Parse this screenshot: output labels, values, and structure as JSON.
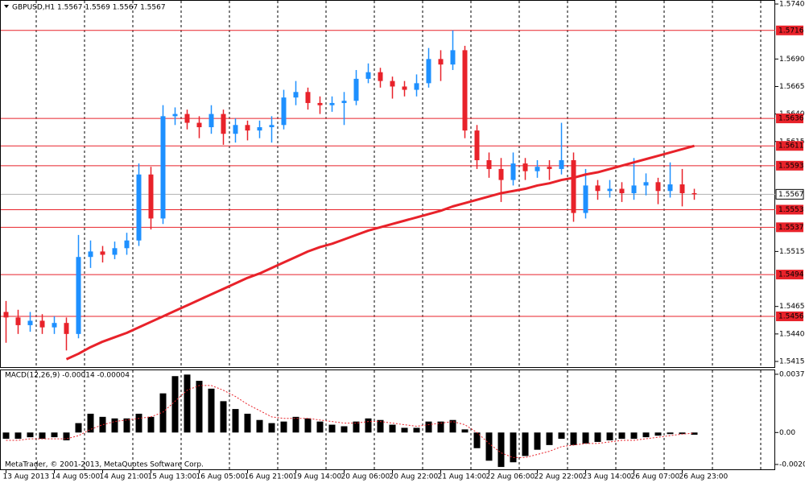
{
  "chart_data": [
    {
      "type": "candlestick",
      "title": "GBPUSD,H1  1.5567 1.5569 1.5567 1.5567",
      "categories": [
        "13 Aug 2013",
        null,
        null,
        null,
        "14 Aug 05:00",
        null,
        null,
        null,
        "14 Aug 21:00",
        null,
        null,
        null,
        "15 Aug 13:00",
        null,
        null,
        null,
        "16 Aug 05:00",
        null,
        null,
        null,
        "16 Aug 21:00",
        null,
        null,
        null,
        "19 Aug 14:00",
        null,
        null,
        null,
        "20 Aug 06:00",
        null,
        null,
        null,
        "20 Aug 22:00",
        null,
        null,
        null,
        "21 Aug 14:00",
        null,
        null,
        null,
        "22 Aug 06:00",
        null,
        null,
        null,
        "22 Aug 22:00",
        null,
        null,
        null,
        "23 Aug 14:00",
        null,
        null,
        null,
        "26 Aug 07:00",
        null,
        null,
        null,
        "26 Aug 23:00",
        null
      ],
      "open": [
        1.546,
        1.5455,
        1.5448,
        1.5452,
        1.5446,
        1.545,
        1.544,
        1.551,
        1.5515,
        1.5512,
        1.5518,
        1.5525,
        1.5585,
        1.5545,
        1.5638,
        1.564,
        1.5632,
        1.5628,
        1.564,
        1.5622,
        1.563,
        1.5625,
        1.5628,
        1.563,
        1.5655,
        1.566,
        1.565,
        1.5648,
        1.565,
        1.5652,
        1.5672,
        1.5678,
        1.567,
        1.5665,
        1.5662,
        1.5668,
        1.569,
        1.5685,
        1.5698,
        1.5625,
        1.5598,
        1.559,
        1.558,
        1.5595,
        1.5588,
        1.5592,
        1.559,
        1.5598,
        1.555,
        1.5575,
        1.557,
        1.5572,
        1.5568,
        1.5575,
        1.5578,
        1.557,
        1.5576,
        1.5568
      ],
      "high": [
        1.547,
        1.5462,
        1.546,
        1.5458,
        1.5456,
        1.5455,
        1.553,
        1.5525,
        1.552,
        1.5524,
        1.5532,
        1.5595,
        1.5592,
        1.5648,
        1.5646,
        1.5644,
        1.5638,
        1.5648,
        1.5644,
        1.5636,
        1.5634,
        1.5634,
        1.5638,
        1.5662,
        1.567,
        1.5664,
        1.5656,
        1.5656,
        1.566,
        1.568,
        1.5686,
        1.5682,
        1.5674,
        1.567,
        1.5676,
        1.57,
        1.5698,
        1.5716,
        1.5702,
        1.563,
        1.5605,
        1.56,
        1.5605,
        1.56,
        1.5598,
        1.5598,
        1.5632,
        1.5605,
        1.559,
        1.558,
        1.558,
        1.5578,
        1.56,
        1.5586,
        1.5582,
        1.5596,
        1.559,
        1.5572
      ],
      "low": [
        1.5432,
        1.544,
        1.5442,
        1.544,
        1.544,
        1.5425,
        1.5436,
        1.55,
        1.5505,
        1.5508,
        1.5512,
        1.552,
        1.5535,
        1.554,
        1.563,
        1.5626,
        1.5618,
        1.5622,
        1.5612,
        1.5614,
        1.5616,
        1.5618,
        1.5614,
        1.5626,
        1.5648,
        1.5644,
        1.564,
        1.5642,
        1.563,
        1.5648,
        1.5668,
        1.5664,
        1.5654,
        1.5656,
        1.5656,
        1.5664,
        1.567,
        1.568,
        1.5618,
        1.559,
        1.5582,
        1.556,
        1.5575,
        1.558,
        1.5582,
        1.558,
        1.5585,
        1.5542,
        1.5545,
        1.5562,
        1.5564,
        1.556,
        1.5562,
        1.5566,
        1.5558,
        1.5564,
        1.5556,
        1.5562
      ],
      "close": [
        1.5455,
        1.5448,
        1.5452,
        1.5446,
        1.545,
        1.544,
        1.551,
        1.5515,
        1.5512,
        1.5518,
        1.5525,
        1.5585,
        1.5545,
        1.5638,
        1.564,
        1.5632,
        1.5628,
        1.564,
        1.5622,
        1.563,
        1.5625,
        1.5628,
        1.563,
        1.5655,
        1.566,
        1.565,
        1.5648,
        1.565,
        1.5652,
        1.5672,
        1.5678,
        1.567,
        1.5665,
        1.5662,
        1.5668,
        1.569,
        1.5685,
        1.5698,
        1.5625,
        1.5598,
        1.559,
        1.558,
        1.5595,
        1.5588,
        1.5592,
        1.559,
        1.5598,
        1.555,
        1.5575,
        1.557,
        1.5572,
        1.5568,
        1.5575,
        1.5578,
        1.557,
        1.5576,
        1.5568,
        1.5567
      ],
      "up_color": "#1e90ff",
      "down_color": "#e8222a",
      "ma": {
        "color": "#e8222a",
        "values": [
          null,
          null,
          null,
          null,
          null,
          1.5417,
          1.5422,
          1.5428,
          1.5433,
          1.5437,
          1.5441,
          1.5446,
          1.5451,
          1.5456,
          1.5461,
          1.5466,
          1.5471,
          1.5476,
          1.5481,
          1.5486,
          1.5491,
          1.5495,
          1.55,
          1.5505,
          1.551,
          1.5515,
          1.5519,
          1.5522,
          1.5526,
          1.553,
          1.5534,
          1.5537,
          1.554,
          1.5543,
          1.5546,
          1.5549,
          1.5552,
          1.5556,
          1.5559,
          1.5562,
          1.5565,
          1.5568,
          1.557,
          1.5572,
          1.5575,
          1.5577,
          1.558,
          1.5582,
          1.5585,
          1.5587,
          1.559,
          1.5593,
          1.5596,
          1.5599,
          1.5602,
          1.5605,
          1.5608,
          1.5611
        ]
      },
      "ylim": [
        1.5415,
        1.574
      ],
      "yticks": [
        {
          "value": 1.574,
          "label": "1.5740"
        },
        {
          "value": 1.569,
          "label": "1.5690"
        },
        1.5665,
        {
          "value": 1.564,
          "label": "1.5640"
        },
        1.5615,
        1.5515,
        1.5465,
        {
          "value": 1.544,
          "label": "1.5440"
        },
        1.5415
      ],
      "levels": [
        1.5716,
        1.5636,
        1.5611,
        1.5593,
        1.5553,
        1.5537,
        1.5494,
        1.5456
      ],
      "level_color": "#e8222a",
      "current_price": 1.5567
    },
    {
      "type": "macd",
      "title": "MACD(12,26,9) -0.00014 -0.00004",
      "annotation": "MetaTrader, © 2001-2013, MetaQuotes Software Corp.",
      "values": [
        -0.0004,
        -0.0004,
        -0.0003,
        -0.0004,
        -0.0003,
        -0.0005,
        0.0006,
        0.0012,
        0.001,
        0.0009,
        0.0009,
        0.0012,
        0.001,
        0.0025,
        0.0036,
        0.0037,
        0.0033,
        0.0028,
        0.002,
        0.0015,
        0.0012,
        0.0008,
        0.0006,
        0.0007,
        0.001,
        0.0009,
        0.0007,
        0.0005,
        0.0004,
        0.0007,
        0.0009,
        0.0008,
        0.0005,
        0.0003,
        0.0003,
        0.0007,
        0.0007,
        0.0008,
        0.0002,
        -0.001,
        -0.0018,
        -0.0022,
        -0.0019,
        -0.0015,
        -0.0011,
        -0.0008,
        -0.0004,
        -0.0008,
        -0.0007,
        -0.0006,
        -0.0005,
        -0.0004,
        -0.0004,
        -0.0003,
        -0.0002,
        -0.0001,
        -0.0001,
        -0.00014
      ],
      "color": "#000000",
      "signal": {
        "color": "#e8222a",
        "values": [
          -0.0005,
          -0.0005,
          -0.0004,
          -0.0004,
          -0.0004,
          -0.0004,
          -0.0002,
          0.0002,
          0.0005,
          0.0007,
          0.0008,
          0.0009,
          0.001,
          0.0013,
          0.002,
          0.0027,
          0.003,
          0.003,
          0.0027,
          0.0023,
          0.0018,
          0.0014,
          0.001,
          0.0009,
          0.0009,
          0.0009,
          0.0008,
          0.0007,
          0.0006,
          0.0006,
          0.0007,
          0.0007,
          0.0006,
          0.0005,
          0.0004,
          0.0005,
          0.0006,
          0.0007,
          0.0005,
          0.0,
          -0.0007,
          -0.0013,
          -0.0016,
          -0.0016,
          -0.0014,
          -0.0012,
          -0.0009,
          -0.0008,
          -0.0007,
          -0.0007,
          -0.0006,
          -0.0005,
          -0.0005,
          -0.0004,
          -0.0003,
          -0.0002,
          -0.0001,
          -4e-05
        ]
      },
      "ylim": [
        -0.00235,
        0.00387
      ],
      "yticks": [
        0.00372,
        {
          "value": 0,
          "label": "0.00"
        },
        -0.00204
      ]
    }
  ]
}
